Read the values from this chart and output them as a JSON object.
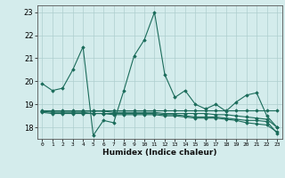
{
  "xlabel": "Humidex (Indice chaleur)",
  "background_color": "#d4ecec",
  "grid_color": "#aecece",
  "line_color": "#1a6b5a",
  "xlim": [
    -0.5,
    23.5
  ],
  "ylim": [
    17.5,
    23.3
  ],
  "yticks": [
    18,
    19,
    20,
    21,
    22,
    23
  ],
  "xticks": [
    0,
    1,
    2,
    3,
    4,
    5,
    6,
    7,
    8,
    9,
    10,
    11,
    12,
    13,
    14,
    15,
    16,
    17,
    18,
    19,
    20,
    21,
    22,
    23
  ],
  "series": [
    {
      "x": [
        0,
        1,
        2,
        3,
        4,
        5,
        6,
        7,
        8,
        9,
        10,
        11,
        12,
        13,
        14,
        15,
        16,
        17,
        18,
        19,
        20,
        21,
        22,
        23
      ],
      "y": [
        19.9,
        19.6,
        19.7,
        20.5,
        21.5,
        17.65,
        18.3,
        18.2,
        19.6,
        21.1,
        21.8,
        23.0,
        20.3,
        19.3,
        19.6,
        19.0,
        18.8,
        19.0,
        18.7,
        19.1,
        19.4,
        19.5,
        18.5,
        18.0
      ]
    },
    {
      "x": [
        0,
        1,
        2,
        3,
        4,
        5,
        6,
        7,
        8,
        9,
        10,
        11,
        12,
        13,
        14,
        15,
        16,
        17,
        18,
        19,
        20,
        21,
        22,
        23
      ],
      "y": [
        18.75,
        18.75,
        18.75,
        18.75,
        18.75,
        18.75,
        18.75,
        18.75,
        18.75,
        18.75,
        18.75,
        18.75,
        18.75,
        18.75,
        18.75,
        18.75,
        18.75,
        18.75,
        18.75,
        18.75,
        18.75,
        18.75,
        18.75,
        18.75
      ]
    },
    {
      "x": [
        0,
        1,
        2,
        3,
        4,
        5,
        6,
        7,
        8,
        9,
        10,
        11,
        12,
        13,
        14,
        15,
        16,
        17,
        18,
        19,
        20,
        21,
        22,
        23
      ],
      "y": [
        18.7,
        18.7,
        18.7,
        18.7,
        18.7,
        18.7,
        18.7,
        18.65,
        18.65,
        18.65,
        18.65,
        18.65,
        18.6,
        18.6,
        18.6,
        18.6,
        18.6,
        18.55,
        18.55,
        18.5,
        18.45,
        18.4,
        18.35,
        18.0
      ]
    },
    {
      "x": [
        0,
        1,
        2,
        3,
        4,
        5,
        6,
        7,
        8,
        9,
        10,
        11,
        12,
        13,
        14,
        15,
        16,
        17,
        18,
        19,
        20,
        21,
        22,
        23
      ],
      "y": [
        18.7,
        18.65,
        18.65,
        18.65,
        18.65,
        18.6,
        18.6,
        18.6,
        18.6,
        18.6,
        18.6,
        18.6,
        18.55,
        18.55,
        18.5,
        18.45,
        18.45,
        18.45,
        18.4,
        18.35,
        18.3,
        18.3,
        18.25,
        17.75
      ]
    },
    {
      "x": [
        0,
        1,
        2,
        3,
        4,
        5,
        6,
        7,
        8,
        9,
        10,
        11,
        12,
        13,
        14,
        15,
        16,
        17,
        18,
        19,
        20,
        21,
        22,
        23
      ],
      "y": [
        18.65,
        18.6,
        18.6,
        18.6,
        18.6,
        18.6,
        18.6,
        18.55,
        18.55,
        18.55,
        18.55,
        18.55,
        18.5,
        18.5,
        18.45,
        18.4,
        18.4,
        18.4,
        18.35,
        18.3,
        18.2,
        18.15,
        18.1,
        17.8
      ]
    }
  ]
}
